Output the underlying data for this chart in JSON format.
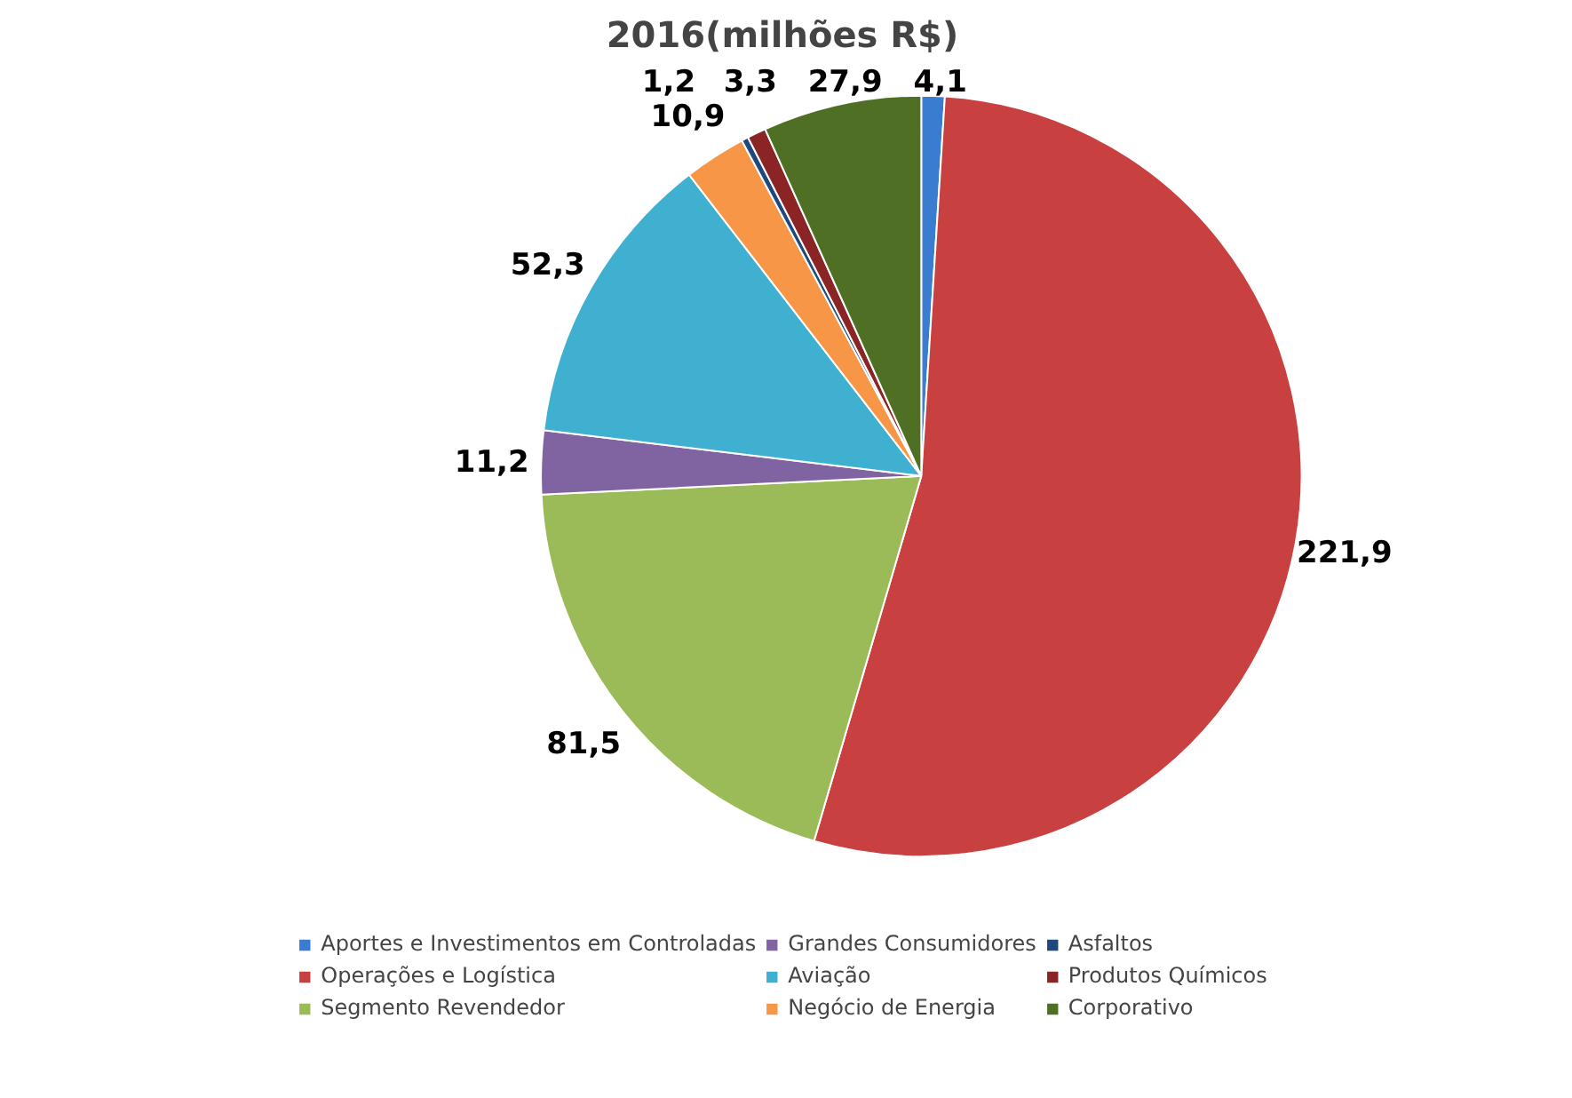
{
  "chart_data": {
    "type": "pie",
    "title": "2016(milhões R$)",
    "categories": [
      "Aportes e Investimentos em Controladas",
      "Operações e Logística",
      "Segmento Revendedor",
      "Grandes Consumidores",
      "Aviação",
      "Negócio de Energia",
      "Asfaltos",
      "Produtos Químicos",
      "Corporativo"
    ],
    "values": [
      4.1,
      221.9,
      81.5,
      11.2,
      52.3,
      10.9,
      1.2,
      3.3,
      27.9
    ],
    "value_labels": [
      "4,1",
      "221,9",
      "81,5",
      "11,2",
      "52,3",
      "10,9",
      "1,2",
      "3,3",
      "27,9"
    ],
    "colors": [
      "#3a7dd0",
      "#c94040",
      "#9bbb59",
      "#8064a2",
      "#3fb0cf",
      "#f79646",
      "#1f497d",
      "#8b2525",
      "#4f6f24"
    ],
    "legend": "bottom"
  }
}
